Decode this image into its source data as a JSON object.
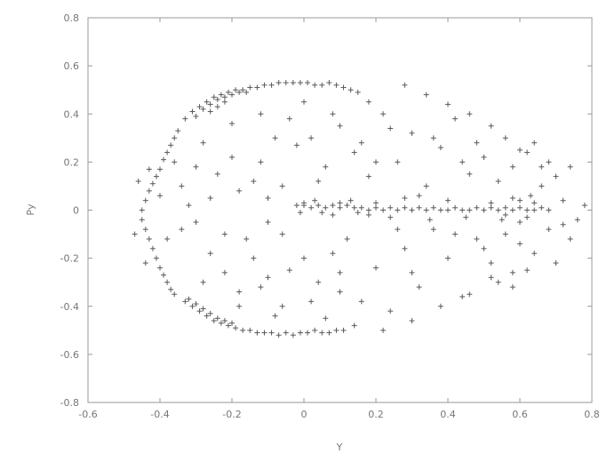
{
  "chart_data": {
    "type": "scatter",
    "xlabel": "Y",
    "ylabel": "Py",
    "xlim": [
      -0.6,
      0.8
    ],
    "ylim": [
      -0.8,
      0.8
    ],
    "xticks": [
      "-0.6",
      "-0.4",
      "-0.2",
      "0",
      "0.2",
      "0.4",
      "0.6",
      "0.8"
    ],
    "yticks": [
      "0.8",
      "0.6",
      "0.4",
      "0.2",
      "0",
      "-0.2",
      "-0.4",
      "-0.6",
      "-0.8"
    ],
    "marker": "+",
    "marker_color": "#5a5a5a",
    "grid": false,
    "series": [
      {
        "points": [
          [
            -0.33,
            0.38
          ],
          [
            -0.31,
            0.41
          ],
          [
            -0.29,
            0.43
          ],
          [
            -0.27,
            0.45
          ],
          [
            -0.25,
            0.47
          ],
          [
            -0.23,
            0.48
          ],
          [
            -0.21,
            0.49
          ],
          [
            -0.19,
            0.5
          ],
          [
            -0.17,
            0.5
          ],
          [
            -0.15,
            0.51
          ],
          [
            -0.13,
            0.51
          ],
          [
            -0.11,
            0.52
          ],
          [
            -0.09,
            0.52
          ],
          [
            -0.07,
            0.53
          ],
          [
            -0.05,
            0.53
          ],
          [
            -0.03,
            0.53
          ],
          [
            -0.01,
            0.53
          ],
          [
            0.01,
            0.53
          ],
          [
            0.03,
            0.52
          ],
          [
            0.05,
            0.52
          ],
          [
            0.07,
            0.53
          ],
          [
            0.09,
            0.52
          ],
          [
            0.11,
            0.51
          ],
          [
            0.13,
            0.5
          ],
          [
            0.15,
            0.49
          ],
          [
            -0.3,
            0.39
          ],
          [
            -0.28,
            0.42
          ],
          [
            -0.26,
            0.44
          ],
          [
            -0.24,
            0.46
          ],
          [
            -0.22,
            0.47
          ],
          [
            -0.2,
            0.48
          ],
          [
            -0.18,
            0.49
          ],
          [
            -0.16,
            0.49
          ],
          [
            -0.26,
            0.41
          ],
          [
            -0.24,
            0.43
          ],
          [
            -0.22,
            0.45
          ],
          [
            -0.35,
            0.33
          ],
          [
            -0.36,
            0.3
          ],
          [
            -0.37,
            0.27
          ],
          [
            -0.38,
            0.24
          ],
          [
            -0.39,
            0.21
          ],
          [
            -0.4,
            0.17
          ],
          [
            -0.41,
            0.14
          ],
          [
            -0.42,
            0.11
          ],
          [
            -0.43,
            0.08
          ],
          [
            -0.44,
            0.04
          ],
          [
            -0.45,
            0.0
          ],
          [
            -0.45,
            -0.04
          ],
          [
            -0.44,
            -0.08
          ],
          [
            -0.43,
            -0.12
          ],
          [
            -0.42,
            -0.16
          ],
          [
            -0.41,
            -0.2
          ],
          [
            -0.4,
            -0.24
          ],
          [
            -0.39,
            -0.27
          ],
          [
            -0.38,
            -0.3
          ],
          [
            -0.37,
            -0.33
          ],
          [
            -0.36,
            -0.35
          ],
          [
            -0.33,
            -0.38
          ],
          [
            -0.31,
            -0.4
          ],
          [
            -0.29,
            -0.42
          ],
          [
            -0.27,
            -0.44
          ],
          [
            -0.25,
            -0.46
          ],
          [
            -0.23,
            -0.47
          ],
          [
            -0.21,
            -0.48
          ],
          [
            -0.19,
            -0.49
          ],
          [
            -0.17,
            -0.5
          ],
          [
            -0.15,
            -0.5
          ],
          [
            -0.13,
            -0.51
          ],
          [
            -0.11,
            -0.51
          ],
          [
            -0.09,
            -0.51
          ],
          [
            -0.07,
            -0.52
          ],
          [
            -0.05,
            -0.51
          ],
          [
            -0.03,
            -0.52
          ],
          [
            -0.01,
            -0.51
          ],
          [
            0.01,
            -0.51
          ],
          [
            0.03,
            -0.5
          ],
          [
            0.05,
            -0.51
          ],
          [
            0.07,
            -0.51
          ],
          [
            0.09,
            -0.5
          ],
          [
            0.11,
            -0.5
          ],
          [
            -0.32,
            -0.37
          ],
          [
            -0.3,
            -0.39
          ],
          [
            -0.28,
            -0.41
          ],
          [
            -0.26,
            -0.43
          ],
          [
            -0.24,
            -0.45
          ],
          [
            -0.22,
            -0.46
          ],
          [
            -0.2,
            -0.47
          ],
          [
            -0.02,
            0.02
          ],
          [
            0.0,
            0.02
          ],
          [
            0.02,
            0.01
          ],
          [
            0.04,
            0.02
          ],
          [
            0.06,
            0.01
          ],
          [
            0.08,
            0.02
          ],
          [
            0.1,
            0.01
          ],
          [
            0.12,
            0.02
          ],
          [
            0.14,
            0.01
          ],
          [
            0.16,
            0.01
          ],
          [
            0.18,
            0.0
          ],
          [
            0.2,
            0.01
          ],
          [
            0.22,
            0.0
          ],
          [
            0.24,
            0.01
          ],
          [
            0.26,
            0.0
          ],
          [
            0.28,
            0.01
          ],
          [
            0.3,
            0.0
          ],
          [
            0.32,
            0.01
          ],
          [
            0.34,
            0.0
          ],
          [
            0.36,
            0.01
          ],
          [
            0.38,
            0.0
          ],
          [
            0.4,
            0.0
          ],
          [
            0.42,
            0.01
          ],
          [
            0.44,
            0.0
          ],
          [
            0.46,
            0.0
          ],
          [
            0.48,
            0.01
          ],
          [
            0.5,
            0.0
          ],
          [
            0.52,
            0.01
          ],
          [
            0.54,
            0.0
          ],
          [
            0.56,
            0.01
          ],
          [
            0.58,
            0.0
          ],
          [
            0.6,
            0.01
          ],
          [
            0.62,
            0.0
          ],
          [
            0.64,
            0.0
          ],
          [
            0.66,
            0.01
          ],
          [
            0.68,
            0.0
          ],
          [
            0.52,
            0.03
          ],
          [
            0.56,
            -0.02
          ],
          [
            0.6,
            0.04
          ],
          [
            0.62,
            -0.03
          ],
          [
            0.58,
            0.05
          ],
          [
            0.64,
            0.03
          ],
          [
            0.55,
            -0.04
          ],
          [
            0.6,
            -0.05
          ],
          [
            0.63,
            0.06
          ],
          [
            0.0,
            0.03
          ],
          [
            0.05,
            -0.01
          ],
          [
            0.1,
            0.03
          ],
          [
            0.15,
            -0.01
          ],
          [
            0.2,
            0.03
          ],
          [
            -0.01,
            -0.01
          ],
          [
            0.03,
            0.04
          ],
          [
            0.08,
            -0.02
          ],
          [
            0.13,
            0.04
          ],
          [
            0.18,
            -0.02
          ],
          [
            0.24,
            -0.03
          ],
          [
            0.28,
            0.05
          ],
          [
            0.35,
            -0.04
          ],
          [
            0.4,
            0.04
          ],
          [
            0.45,
            -0.03
          ],
          [
            -0.3,
            0.18
          ],
          [
            -0.24,
            0.15
          ],
          [
            -0.2,
            0.22
          ],
          [
            -0.18,
            0.08
          ],
          [
            -0.16,
            -0.12
          ],
          [
            -0.12,
            0.2
          ],
          [
            -0.1,
            -0.05
          ],
          [
            -0.08,
            0.3
          ],
          [
            -0.06,
            0.1
          ],
          [
            -0.04,
            -0.25
          ],
          [
            -0.02,
            0.27
          ],
          [
            0.02,
            0.3
          ],
          [
            0.04,
            -0.3
          ],
          [
            0.06,
            0.18
          ],
          [
            0.08,
            -0.18
          ],
          [
            0.1,
            0.35
          ],
          [
            0.12,
            -0.12
          ],
          [
            0.14,
            0.24
          ],
          [
            0.16,
            -0.38
          ],
          [
            0.18,
            0.14
          ],
          [
            0.2,
            -0.24
          ],
          [
            0.22,
            0.4
          ],
          [
            0.24,
            -0.42
          ],
          [
            0.26,
            0.2
          ],
          [
            0.28,
            -0.16
          ],
          [
            0.3,
            0.32
          ],
          [
            0.32,
            -0.32
          ],
          [
            0.34,
            0.1
          ],
          [
            0.36,
            -0.08
          ],
          [
            0.38,
            0.26
          ],
          [
            0.4,
            -0.2
          ],
          [
            0.42,
            0.38
          ],
          [
            0.44,
            -0.36
          ],
          [
            0.46,
            0.15
          ],
          [
            0.48,
            -0.12
          ],
          [
            0.5,
            0.22
          ],
          [
            0.52,
            -0.22
          ],
          [
            0.54,
            0.12
          ],
          [
            0.56,
            -0.1
          ],
          [
            0.58,
            0.18
          ],
          [
            0.6,
            -0.14
          ],
          [
            0.62,
            0.24
          ],
          [
            0.64,
            -0.18
          ],
          [
            0.66,
            0.1
          ],
          [
            0.68,
            -0.08
          ],
          [
            0.7,
            0.14
          ],
          [
            0.72,
            -0.06
          ],
          [
            0.74,
            0.18
          ],
          [
            0.76,
            -0.04
          ],
          [
            0.78,
            0.02
          ],
          [
            0.7,
            -0.22
          ],
          [
            -0.26,
            -0.18
          ],
          [
            -0.22,
            -0.26
          ],
          [
            -0.18,
            -0.34
          ],
          [
            -0.14,
            -0.2
          ],
          [
            -0.1,
            -0.28
          ],
          [
            -0.06,
            -0.4
          ],
          [
            -0.34,
            0.1
          ],
          [
            -0.3,
            -0.05
          ],
          [
            -0.26,
            0.05
          ],
          [
            -0.22,
            -0.1
          ],
          [
            -0.14,
            0.12
          ],
          [
            -0.12,
            -0.32
          ],
          [
            0.0,
            0.45
          ],
          [
            0.08,
            0.4
          ],
          [
            0.18,
            0.45
          ],
          [
            0.28,
            0.52
          ],
          [
            0.34,
            0.48
          ],
          [
            0.4,
            0.44
          ],
          [
            0.46,
            0.4
          ],
          [
            0.52,
            0.35
          ],
          [
            0.56,
            0.3
          ],
          [
            0.6,
            0.25
          ],
          [
            0.64,
            0.28
          ],
          [
            0.66,
            0.18
          ],
          [
            0.06,
            -0.45
          ],
          [
            0.14,
            -0.48
          ],
          [
            0.22,
            -0.5
          ],
          [
            0.3,
            -0.46
          ],
          [
            0.38,
            -0.4
          ],
          [
            0.46,
            -0.35
          ],
          [
            0.52,
            -0.28
          ],
          [
            0.58,
            -0.32
          ],
          [
            0.62,
            -0.25
          ],
          [
            -0.47,
            -0.1
          ],
          [
            -0.46,
            0.12
          ],
          [
            -0.44,
            -0.22
          ],
          [
            -0.43,
            0.17
          ],
          [
            -0.4,
            0.06
          ],
          [
            -0.38,
            -0.12
          ],
          [
            -0.36,
            0.2
          ],
          [
            -0.34,
            -0.08
          ],
          [
            -0.32,
            0.02
          ],
          [
            -0.28,
            0.28
          ],
          [
            -0.2,
            0.36
          ],
          [
            -0.12,
            0.4
          ],
          [
            -0.04,
            0.38
          ],
          [
            -0.28,
            -0.3
          ],
          [
            -0.18,
            -0.4
          ],
          [
            -0.08,
            -0.44
          ],
          [
            0.02,
            -0.38
          ],
          [
            0.1,
            -0.34
          ],
          [
            0.2,
            0.2
          ],
          [
            0.26,
            -0.08
          ],
          [
            0.32,
            0.06
          ],
          [
            0.42,
            -0.1
          ],
          [
            0.48,
            0.28
          ],
          [
            0.54,
            -0.3
          ],
          [
            0.68,
            0.2
          ],
          [
            0.72,
            0.04
          ],
          [
            0.74,
            -0.12
          ],
          [
            -0.1,
            0.05
          ],
          [
            -0.06,
            -0.1
          ],
          [
            0.0,
            -0.2
          ],
          [
            0.04,
            0.12
          ],
          [
            0.1,
            -0.26
          ],
          [
            0.16,
            0.28
          ],
          [
            0.24,
            0.34
          ],
          [
            0.3,
            -0.26
          ],
          [
            0.36,
            0.3
          ],
          [
            0.44,
            0.2
          ],
          [
            0.5,
            -0.16
          ],
          [
            0.58,
            -0.26
          ]
        ]
      }
    ]
  }
}
